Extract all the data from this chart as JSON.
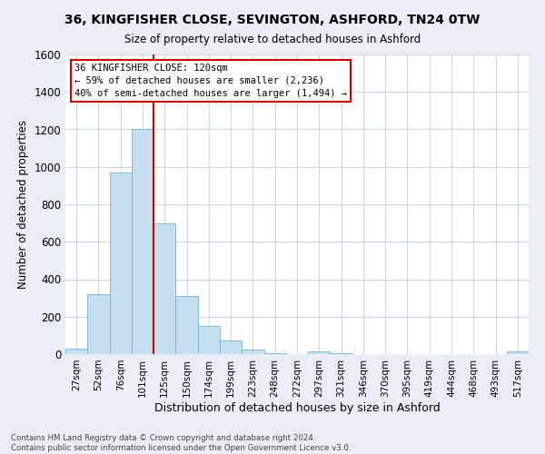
{
  "title1": "36, KINGFISHER CLOSE, SEVINGTON, ASHFORD, TN24 0TW",
  "title2": "Size of property relative to detached houses in Ashford",
  "xlabel": "Distribution of detached houses by size in Ashford",
  "ylabel": "Number of detached properties",
  "categories": [
    "27sqm",
    "52sqm",
    "76sqm",
    "101sqm",
    "125sqm",
    "150sqm",
    "174sqm",
    "199sqm",
    "223sqm",
    "248sqm",
    "272sqm",
    "297sqm",
    "321sqm",
    "346sqm",
    "370sqm",
    "395sqm",
    "419sqm",
    "444sqm",
    "468sqm",
    "493sqm",
    "517sqm"
  ],
  "values": [
    30,
    320,
    970,
    1200,
    700,
    310,
    150,
    75,
    25,
    5,
    0,
    15,
    5,
    0,
    0,
    0,
    0,
    0,
    0,
    0,
    15
  ],
  "bar_color": "#c6dff0",
  "bar_edge_color": "#7fb9d8",
  "vline_x_index": 3,
  "vline_color": "#cc0000",
  "annotation_line1": "36 KINGFISHER CLOSE: 120sqm",
  "annotation_line2": "← 59% of detached houses are smaller (2,236)",
  "annotation_line3": "40% of semi-detached houses are larger (1,494) →",
  "annotation_box_color": "#ffffff",
  "annotation_box_edge_color": "#cc0000",
  "ylim": [
    0,
    1600
  ],
  "yticks": [
    0,
    200,
    400,
    600,
    800,
    1000,
    1200,
    1400,
    1600
  ],
  "footer_text": "Contains HM Land Registry data © Crown copyright and database right 2024.\nContains public sector information licensed under the Open Government Licence v3.0.",
  "background_color": "#e8eef4",
  "plot_bg_color": "#ffffff",
  "grid_color": "#c8d4de"
}
